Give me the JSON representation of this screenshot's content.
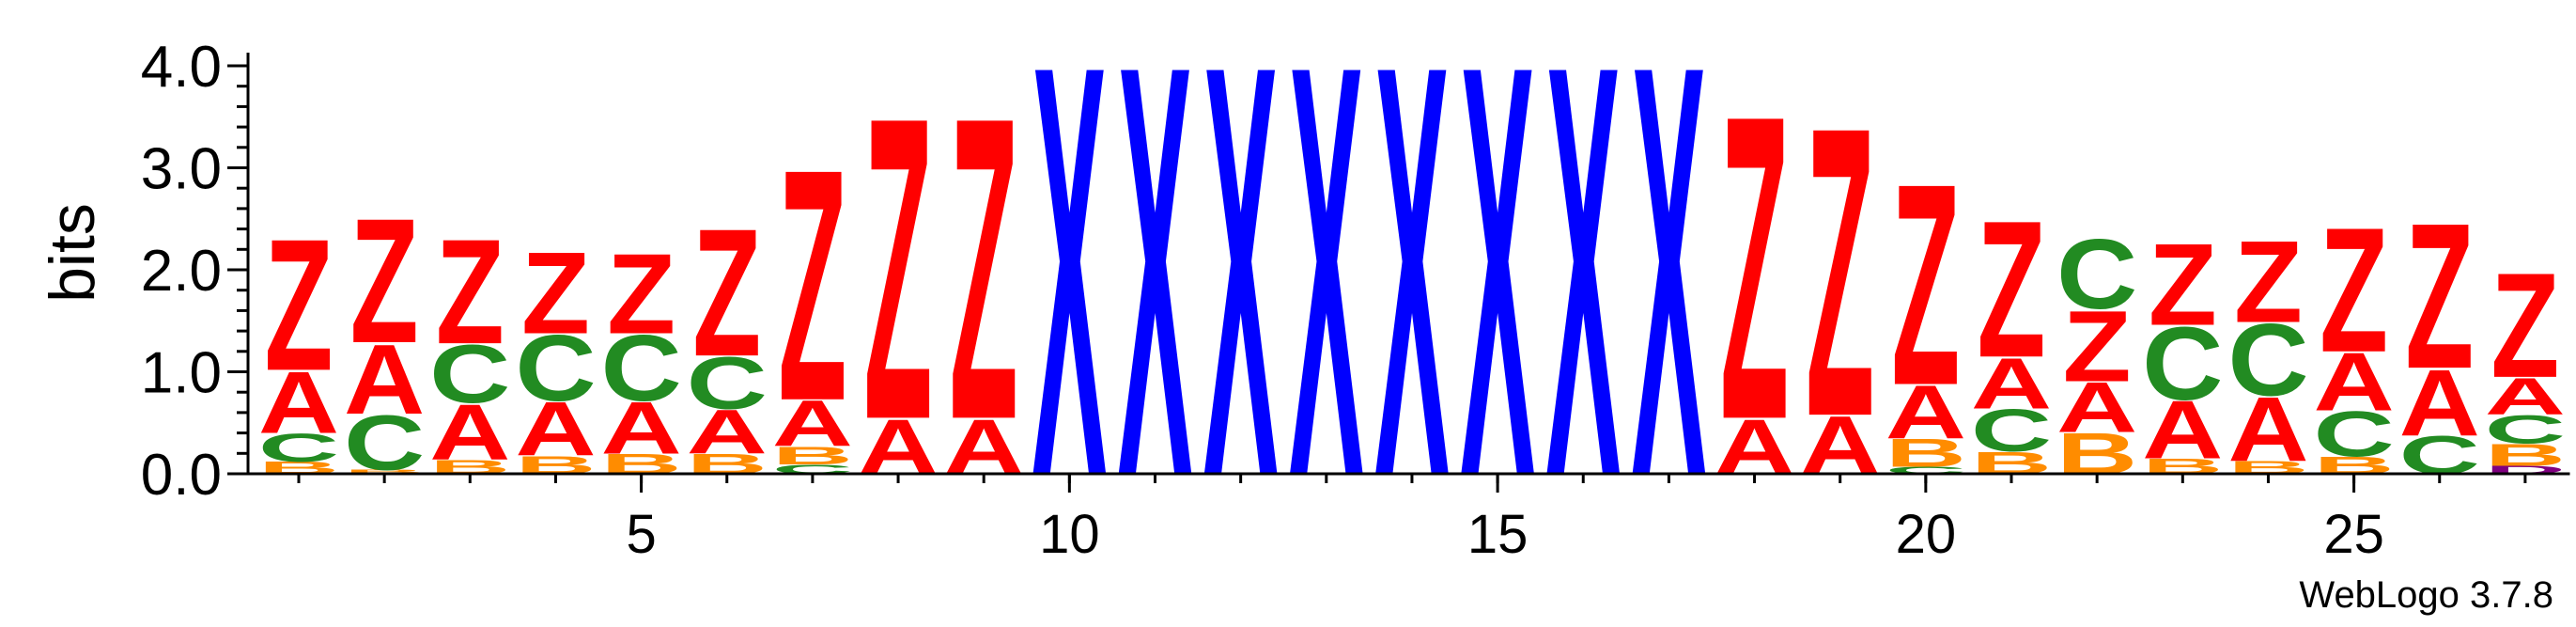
{
  "chart_data": {
    "type": "sequence-logo",
    "ylabel": "bits",
    "ylim": [
      0,
      4.0
    ],
    "y_ticks": [
      0.0,
      1.0,
      2.0,
      3.0,
      4.0
    ],
    "y_tick_labels": [
      "0.0",
      "1.0",
      "2.0",
      "3.0",
      "4.0"
    ],
    "y_minor_step": 0.2,
    "x_range": [
      1,
      27
    ],
    "x_ticks": [
      5,
      10,
      15,
      20,
      25
    ],
    "x_tick_labels": [
      "5",
      "10",
      "15",
      "20",
      "25"
    ],
    "colors": {
      "Z": "#ff0000",
      "A": "#ff0000",
      "X": "#0000ff",
      "C": "#228b22",
      "B": "#ff8c00",
      "D": "#800080"
    },
    "positions": [
      {
        "pos": 1,
        "letters": [
          [
            "B",
            0.12
          ],
          [
            "C",
            0.28
          ],
          [
            "A",
            0.62
          ],
          [
            "Z",
            1.32
          ]
        ]
      },
      {
        "pos": 2,
        "letters": [
          [
            "B",
            0.04
          ],
          [
            "C",
            0.55
          ],
          [
            "A",
            0.7
          ],
          [
            "Z",
            1.25
          ]
        ]
      },
      {
        "pos": 3,
        "letters": [
          [
            "B",
            0.14
          ],
          [
            "A",
            0.56
          ],
          [
            "C",
            0.58
          ],
          [
            "Z",
            1.05
          ]
        ]
      },
      {
        "pos": 4,
        "letters": [
          [
            "B",
            0.18
          ],
          [
            "A",
            0.54
          ],
          [
            "C",
            0.66
          ],
          [
            "Z",
            0.82
          ]
        ]
      },
      {
        "pos": 5,
        "letters": [
          [
            "B",
            0.2
          ],
          [
            "A",
            0.52
          ],
          [
            "C",
            0.66
          ],
          [
            "Z",
            0.8
          ]
        ]
      },
      {
        "pos": 6,
        "letters": [
          [
            "B",
            0.2
          ],
          [
            "A",
            0.44
          ],
          [
            "C",
            0.52
          ],
          [
            "Z",
            1.28
          ]
        ]
      },
      {
        "pos": 7,
        "letters": [
          [
            "C",
            0.09
          ],
          [
            "B",
            0.18
          ],
          [
            "A",
            0.46
          ],
          [
            "Z",
            2.32
          ]
        ]
      },
      {
        "pos": 8,
        "letters": [
          [
            "A",
            0.55
          ],
          [
            "Z",
            3.03
          ]
        ]
      },
      {
        "pos": 9,
        "letters": [
          [
            "A",
            0.55
          ],
          [
            "Z",
            3.03
          ]
        ]
      },
      {
        "pos": 10,
        "letters": [
          [
            "X",
            4.12
          ]
        ]
      },
      {
        "pos": 11,
        "letters": [
          [
            "X",
            4.12
          ]
        ]
      },
      {
        "pos": 12,
        "letters": [
          [
            "X",
            4.12
          ]
        ]
      },
      {
        "pos": 13,
        "letters": [
          [
            "X",
            4.12
          ]
        ]
      },
      {
        "pos": 14,
        "letters": [
          [
            "X",
            4.12
          ]
        ]
      },
      {
        "pos": 15,
        "letters": [
          [
            "X",
            4.12
          ]
        ]
      },
      {
        "pos": 16,
        "letters": [
          [
            "X",
            4.12
          ]
        ]
      },
      {
        "pos": 17,
        "letters": [
          [
            "X",
            4.12
          ]
        ]
      },
      {
        "pos": 18,
        "letters": [
          [
            "A",
            0.55
          ],
          [
            "Z",
            3.05
          ]
        ]
      },
      {
        "pos": 19,
        "letters": [
          [
            "A",
            0.58
          ],
          [
            "Z",
            2.9
          ]
        ]
      },
      {
        "pos": 20,
        "letters": [
          [
            "C",
            0.07
          ],
          [
            "B",
            0.28
          ],
          [
            "A",
            0.53
          ],
          [
            "Z",
            2.02
          ]
        ]
      },
      {
        "pos": 21,
        "letters": [
          [
            "B",
            0.22
          ],
          [
            "C",
            0.42
          ],
          [
            "A",
            0.51
          ],
          [
            "Z",
            1.37
          ]
        ]
      },
      {
        "pos": 22,
        "letters": [
          [
            "B",
            0.41
          ],
          [
            "A",
            0.5
          ],
          [
            "Z",
            0.71
          ],
          [
            "C",
            0.7
          ]
        ]
      },
      {
        "pos": 23,
        "letters": [
          [
            "B",
            0.15
          ],
          [
            "A",
            0.58
          ],
          [
            "C",
            0.73
          ],
          [
            "Z",
            0.82
          ]
        ]
      },
      {
        "pos": 24,
        "letters": [
          [
            "B",
            0.13
          ],
          [
            "A",
            0.64
          ],
          [
            "C",
            0.72
          ],
          [
            "Z",
            0.82
          ]
        ]
      },
      {
        "pos": 25,
        "letters": [
          [
            "B",
            0.17
          ],
          [
            "C",
            0.45
          ],
          [
            "A",
            0.58
          ],
          [
            "Z",
            1.25
          ]
        ]
      },
      {
        "pos": 26,
        "letters": [
          [
            "C",
            0.38
          ],
          [
            "A",
            0.66
          ],
          [
            "Z",
            1.46
          ]
        ]
      },
      {
        "pos": 27,
        "letters": [
          [
            "D",
            0.08
          ],
          [
            "B",
            0.22
          ],
          [
            "C",
            0.28
          ],
          [
            "A",
            0.37
          ],
          [
            "Z",
            1.05
          ]
        ]
      }
    ]
  },
  "footer": {
    "credit": "WebLogo 3.7.8"
  }
}
